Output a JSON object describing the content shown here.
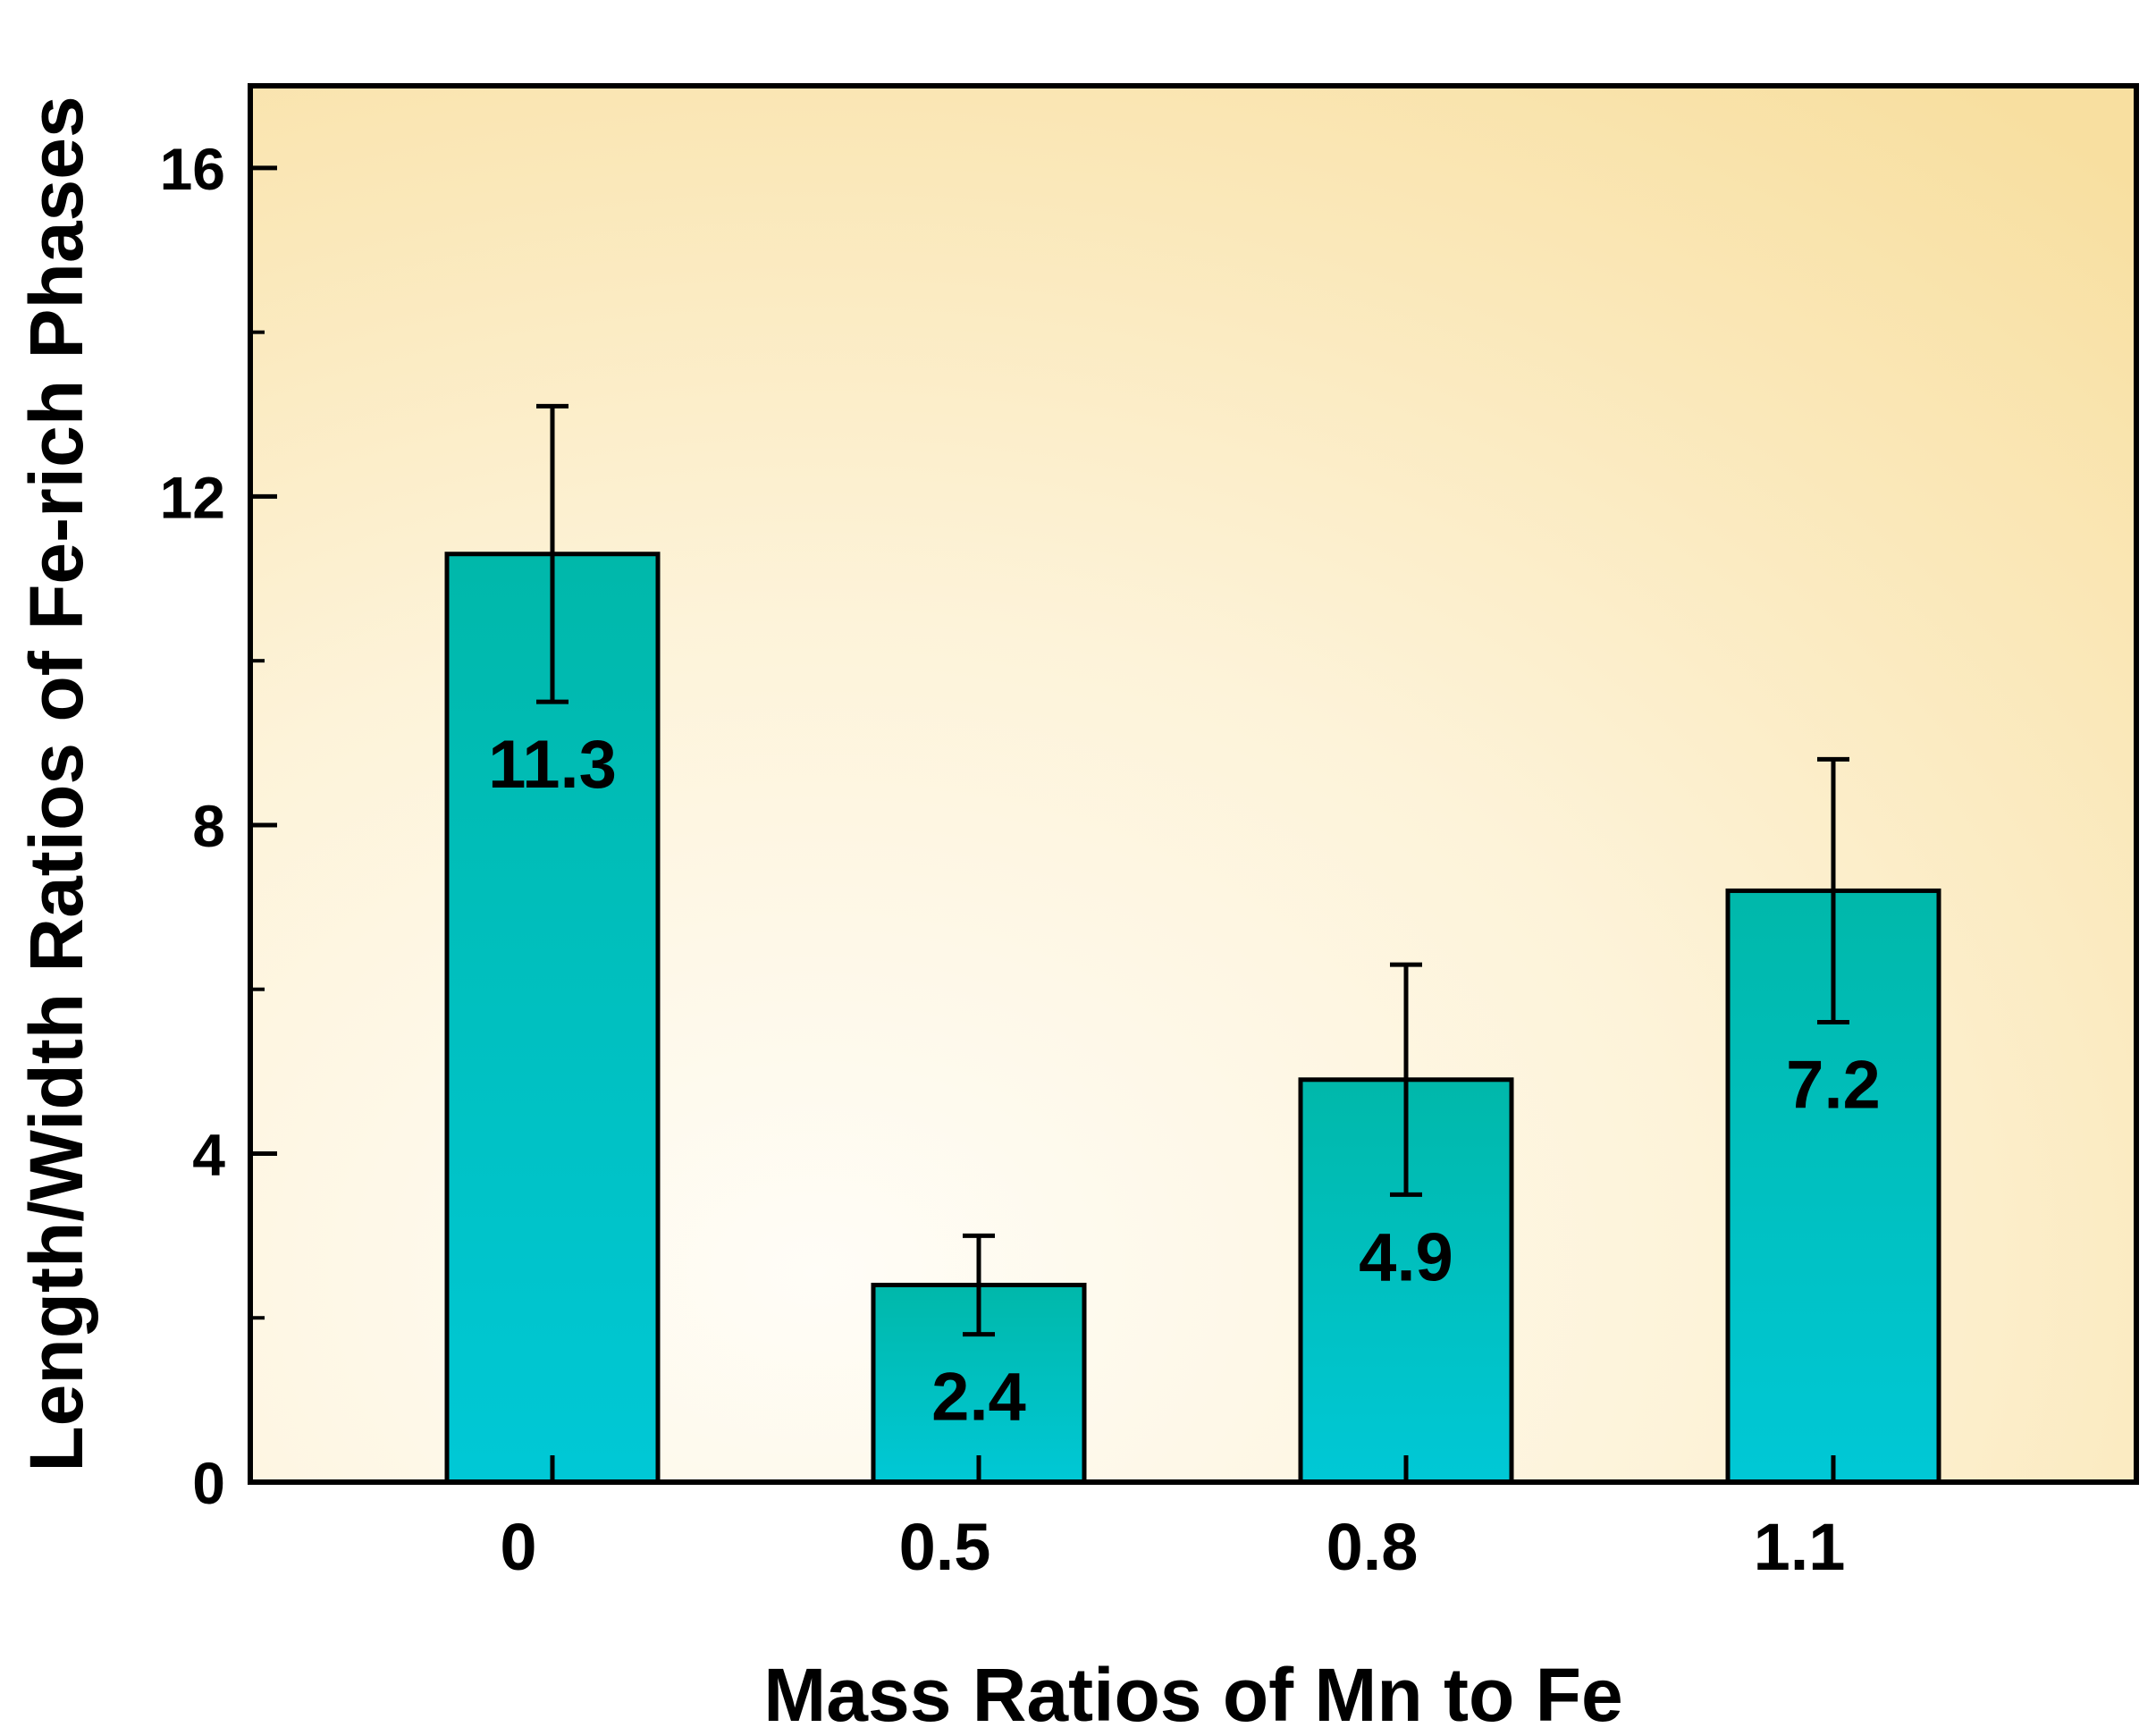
{
  "chart_data": {
    "type": "bar",
    "title": "",
    "xlabel": "Mass Ratios of Mn to Fe",
    "ylabel": "Length/Width Ratios of Fe-rich Phases",
    "categories": [
      "0",
      "0.5",
      "0.8",
      "1.1"
    ],
    "values": [
      11.3,
      2.4,
      4.9,
      7.2
    ],
    "value_labels": [
      "11.3",
      "2.4",
      "4.9",
      "7.2"
    ],
    "error_upper": [
      13.1,
      3.0,
      6.3,
      8.8
    ],
    "error_lower": [
      9.5,
      1.8,
      3.5,
      5.6
    ],
    "ylim": [
      0,
      17
    ],
    "yticks": [
      0,
      4,
      8,
      12,
      16
    ],
    "ytick_labels": [
      "0",
      "4",
      "8",
      "12",
      "16"
    ],
    "ytick_minor": [
      2,
      6,
      10,
      14
    ],
    "grid": false,
    "legend": "none",
    "colors": {
      "bar_fill_top": "#00b8aa",
      "bar_fill_bottom": "#00c8d6",
      "bar_stroke": "#000000",
      "background_warm": "#f8dfa0",
      "background_light": "#fffdf7"
    }
  }
}
